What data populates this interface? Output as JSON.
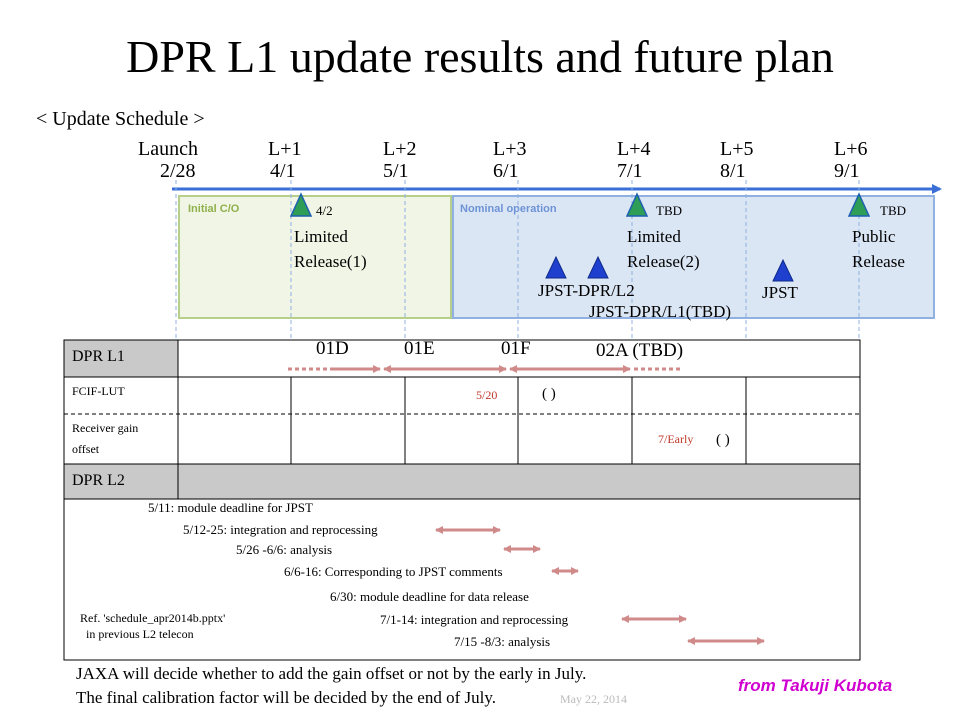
{
  "title": "DPR L1 update results and future plan",
  "subtitle": "< Update Schedule >",
  "milestones": [
    {
      "label": "Launch",
      "date": "2/28"
    },
    {
      "label": "L+1",
      "date": "4/1"
    },
    {
      "label": "L+2",
      "date": "5/1"
    },
    {
      "label": "L+3",
      "date": "6/1"
    },
    {
      "label": "L+4",
      "date": "7/1"
    },
    {
      "label": "L+5",
      "date": "8/1"
    },
    {
      "label": "L+6",
      "date": "9/1"
    }
  ],
  "phases": {
    "initial": "Initial C/O",
    "nominal": "Nominal operation"
  },
  "events": {
    "e1_date": "4/2",
    "e1_l1": "Limited",
    "e1_l2": "Release(1)",
    "e2_date": "TBD",
    "e2_l1": "Limited",
    "e2_l2": "Release(2)",
    "e3_date": "TBD",
    "e3_l1": "Public",
    "e3_l2": "Release",
    "jpst_l2": "JPST-DPR/L2",
    "jpst_l1": "JPST-DPR/L1(TBD)",
    "jpst": "JPST"
  },
  "table": {
    "row_dpr_l1": "DPR L1",
    "versions": [
      "01D",
      "01E",
      "01F",
      "02A (TBD)"
    ],
    "row_fcif": "FCIF-LUT",
    "fcif_date": "5/20",
    "fcif_paren": "(    )",
    "fcif_mark": "  ",
    "row_gain1": "Receiver gain",
    "row_gain2": "offset",
    "gain_date": "7/Early",
    "gain_paren": "(     )",
    "row_dpr_l2": "DPR L2"
  },
  "l2_items": [
    "5/11: module deadline for JPST",
    "5/12-25: integration and reprocessing",
    "5/26 -6/6: analysis",
    "6/6-16: Corresponding to JPST comments",
    "6/30: module deadline for data release",
    "7/1-14: integration and reprocessing",
    "7/15 -8/3: analysis"
  ],
  "ref_note_1": "Ref. 'schedule_apr2014b.pptx'",
  "ref_note_2": "in previous L2 telecon",
  "footer_1": "JAXA will decide whether to add the gain offset or not by the early in July.",
  "footer_2": "The final calibration factor will be decided  by the end of July.",
  "date_watermark": "May 22, 2014",
  "credit": "from Takuji Kubota",
  "colors": {
    "accent": "#3a6fd8",
    "initial_fill": "#f1f5e6",
    "nominal_fill": "#dbe6f5",
    "arrow": "#d08a8a",
    "triangle_green": "#2e9e57",
    "triangle_blue": "#1f3fcf"
  }
}
